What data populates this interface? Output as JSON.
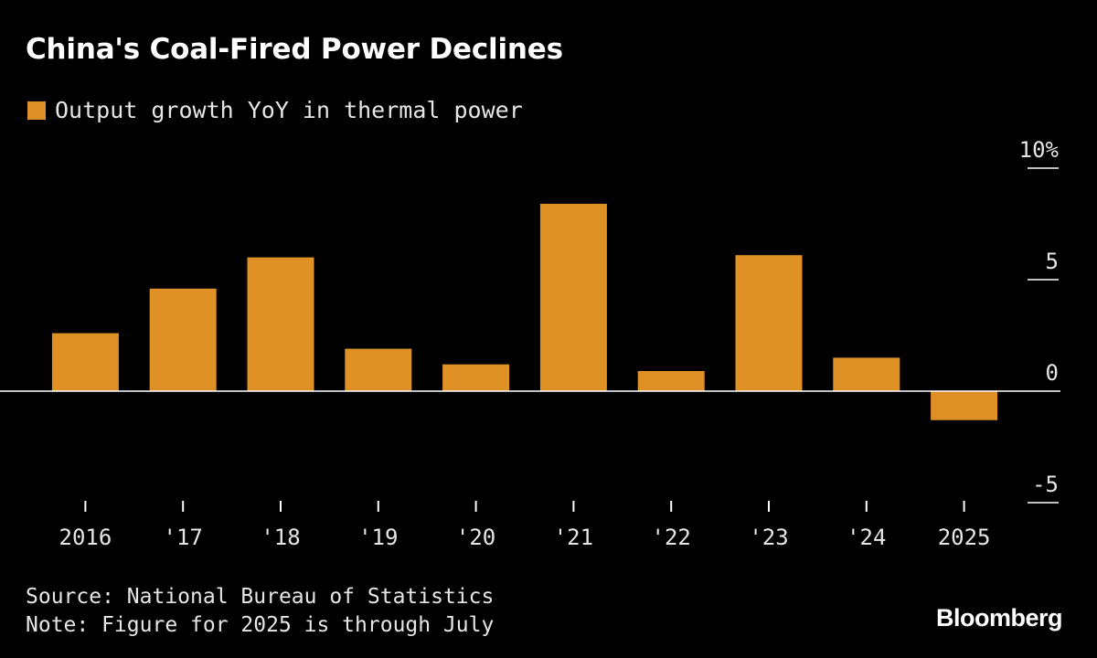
{
  "colors": {
    "background": "#000000",
    "bar": "#e09126",
    "axis": "#ffffff",
    "text": "#e6e6e6"
  },
  "chart_data": {
    "type": "bar",
    "title": "China's Coal-Fired Power Declines",
    "categories": [
      "2016",
      "'17",
      "'18",
      "'19",
      "'20",
      "'21",
      "'22",
      "'23",
      "'24",
      "2025"
    ],
    "series": [
      {
        "name": "Output growth YoY in thermal power",
        "values": [
          2.6,
          4.6,
          6.0,
          1.9,
          1.2,
          8.4,
          0.9,
          6.1,
          1.5,
          -1.3
        ]
      }
    ],
    "y_ticks": [
      {
        "value": 10,
        "label": "10%"
      },
      {
        "value": 5,
        "label": "5"
      },
      {
        "value": 0,
        "label": "0"
      },
      {
        "value": -5,
        "label": "-5"
      }
    ],
    "ylim": [
      -5,
      10
    ],
    "y_axis_position": "right",
    "grid": false,
    "legend": "top-left"
  },
  "footer": {
    "source": "Source: National Bureau of Statistics",
    "note": "Note: Figure for 2025 is through July"
  },
  "brand": "Bloomberg"
}
